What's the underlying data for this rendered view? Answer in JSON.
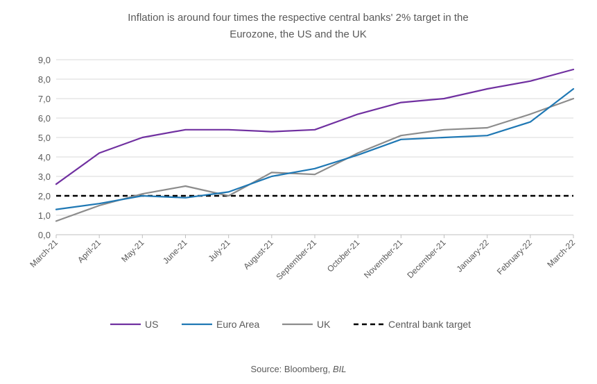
{
  "chart_data": {
    "type": "line",
    "title_lines": [
      "Inflation is around four times the respective central banks' 2% target in the",
      "Eurozone, the US and the UK"
    ],
    "categories": [
      "March-21",
      "April-21",
      "May-21",
      "June-21",
      "July-21",
      "August-21",
      "September-21",
      "October-21",
      "November-21",
      "December-21",
      "January-22",
      "February-22",
      "March-22"
    ],
    "y_ticks": [
      "0,0",
      "1,0",
      "2,0",
      "3,0",
      "4,0",
      "5,0",
      "6,0",
      "7,0",
      "8,0",
      "9,0"
    ],
    "ylim": [
      0,
      9
    ],
    "grid": true,
    "legend_position": "bottom",
    "series": [
      {
        "name": "US",
        "color": "#7030a0",
        "style": "solid",
        "values": [
          2.6,
          4.2,
          5.0,
          5.4,
          5.4,
          5.3,
          5.4,
          6.2,
          6.8,
          7.0,
          7.5,
          7.9,
          8.5
        ]
      },
      {
        "name": "Euro Area",
        "color": "#1f78b4",
        "style": "solid",
        "values": [
          1.3,
          1.6,
          2.0,
          1.9,
          2.2,
          3.0,
          3.4,
          4.1,
          4.9,
          5.0,
          5.1,
          5.8,
          7.5
        ]
      },
      {
        "name": "UK",
        "color": "#8c8c8c",
        "style": "solid",
        "values": [
          0.7,
          1.5,
          2.1,
          2.5,
          2.0,
          3.2,
          3.1,
          4.2,
          5.1,
          5.4,
          5.5,
          6.2,
          7.0
        ]
      },
      {
        "name": "Central bank target",
        "color": "#000000",
        "style": "dashed",
        "values": [
          2.0,
          2.0,
          2.0,
          2.0,
          2.0,
          2.0,
          2.0,
          2.0,
          2.0,
          2.0,
          2.0,
          2.0,
          2.0
        ]
      }
    ]
  },
  "source": {
    "label": "Source: Bloomberg, ",
    "emphasis": "BIL"
  }
}
